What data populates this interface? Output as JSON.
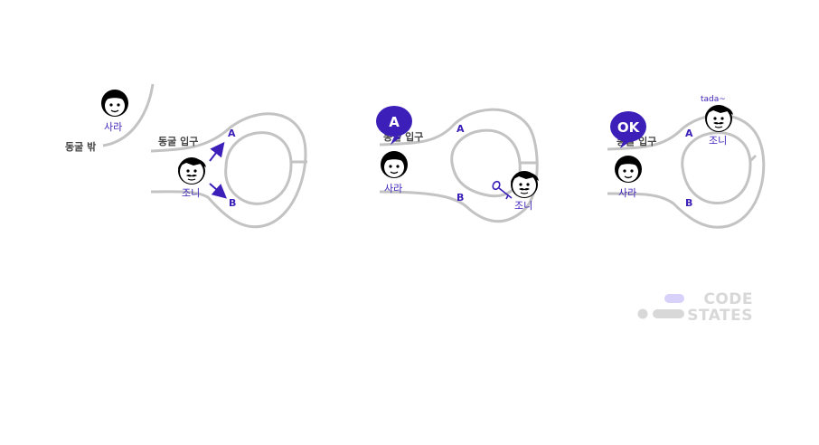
{
  "colors": {
    "path": "#c3c3c3",
    "accent": "#3b1fb8",
    "label": "#444444",
    "logo_gray": "#d8d8d8",
    "logo_purple": "#d8d2fa"
  },
  "panel1": {
    "outside_label": "동굴 밖",
    "entrance_label": "동굴 입구",
    "sara_name": "사라",
    "johnny_name": "조니",
    "path_a": "A",
    "path_b": "B"
  },
  "panel2": {
    "entrance_label": "동굴 입구",
    "bubble_text": "A",
    "sara_name": "사라",
    "johnny_name": "조니",
    "path_a": "A",
    "path_b": "B",
    "key_icon": "key-icon"
  },
  "panel3": {
    "entrance_label": "동굴 입구",
    "bubble_text": "OK",
    "sara_name": "사라",
    "johnny_name": "조니",
    "tada": "tada~",
    "path_a": "A",
    "path_b": "B"
  },
  "logo": {
    "line1": "CODE",
    "line2": "STATES"
  }
}
